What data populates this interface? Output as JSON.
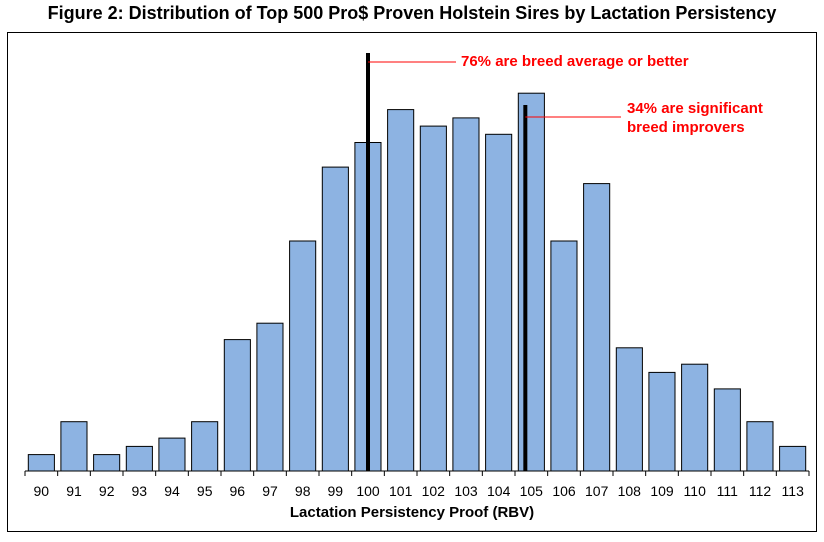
{
  "chart_data": {
    "type": "bar",
    "title": "Figure 2: Distribution of Top 500 Pro$ Proven Holstein Sires by Lactation Persistency",
    "xlabel": "Lactation Persistency Proof (RBV)",
    "ylabel": "",
    "categories": [
      "90",
      "91",
      "92",
      "93",
      "94",
      "95",
      "96",
      "97",
      "98",
      "99",
      "100",
      "101",
      "102",
      "103",
      "104",
      "105",
      "106",
      "107",
      "108",
      "109",
      "110",
      "111",
      "112",
      "113"
    ],
    "values": [
      1,
      3,
      1,
      1.5,
      2,
      3,
      8,
      9,
      14,
      18.5,
      20,
      22,
      21,
      21.5,
      20.5,
      23,
      14,
      17.5,
      7.5,
      6,
      6.5,
      5,
      3,
      1.5
    ],
    "ylim": [
      0,
      25
    ],
    "bar_color": "#8db3e2",
    "vlines": [
      {
        "x": "100",
        "label": "76% are breed average or better",
        "color": "#000000"
      },
      {
        "x": "105",
        "label": "34% are significant breed improvers",
        "color": "#000000"
      }
    ],
    "annotation_color": "#ff0000",
    "grid": false
  },
  "annotations": {
    "a1": "76% are breed average or better",
    "a2_line1": "34% are significant",
    "a2_line2": "breed improvers"
  }
}
